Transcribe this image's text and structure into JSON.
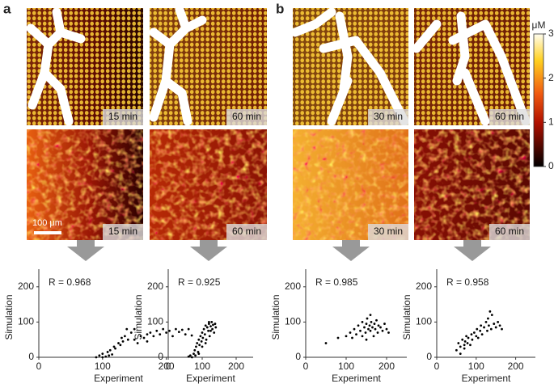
{
  "panels": [
    "a",
    "b"
  ],
  "images": [
    {
      "label": "15 min"
    },
    {
      "label": "60 min"
    },
    {
      "label": "15 min"
    },
    {
      "label": "60 min"
    },
    {
      "label": "30 min"
    },
    {
      "label": "60 min"
    },
    {
      "label": "30 min"
    },
    {
      "label": "60 min"
    }
  ],
  "scale_bar": "100 μm",
  "colorbar": {
    "label": "μM",
    "lim": [
      0,
      3
    ],
    "ticks": [
      0,
      1,
      2,
      3
    ]
  },
  "chart_data": [
    {
      "type": "scatter",
      "title": "R = 0.968",
      "xlabel": "Experiment",
      "ylabel": "Simulation",
      "color": "#000000",
      "xlim": [
        0,
        250
      ],
      "ylim": [
        0,
        250
      ],
      "xticks": [
        0,
        100,
        200
      ],
      "yticks": [
        0,
        100,
        200
      ],
      "x": [
        95,
        100,
        105,
        108,
        112,
        115,
        118,
        120,
        125,
        128,
        130,
        132,
        135,
        138,
        140,
        145,
        150,
        155,
        160,
        165,
        170,
        175,
        180,
        185,
        190,
        195,
        200,
        205,
        210,
        215,
        220,
        225,
        230,
        235,
        240,
        100,
        90,
        110,
        150,
        170
      ],
      "values": [
        5,
        10,
        2,
        15,
        20,
        8,
        30,
        25,
        40,
        35,
        55,
        45,
        60,
        80,
        50,
        70,
        80,
        40,
        60,
        55,
        65,
        70,
        60,
        75,
        65,
        80,
        70,
        75,
        60,
        80,
        72,
        78,
        65,
        80,
        62,
        0,
        0,
        5,
        50,
        45
      ]
    },
    {
      "type": "scatter",
      "title": "R = 0.925",
      "xlabel": "Experiment",
      "ylabel": "Simulation",
      "color": "#000000",
      "xlim": [
        0,
        250
      ],
      "ylim": [
        0,
        250
      ],
      "xticks": [
        0,
        100,
        200
      ],
      "yticks": [
        0,
        100,
        200
      ],
      "x": [
        60,
        65,
        70,
        75,
        78,
        80,
        82,
        85,
        88,
        90,
        92,
        95,
        98,
        100,
        102,
        105,
        108,
        110,
        112,
        115,
        118,
        120,
        122,
        125,
        128,
        130,
        132,
        135,
        138,
        140,
        100,
        110,
        90,
        120,
        125
      ],
      "values": [
        2,
        5,
        0,
        10,
        20,
        5,
        30,
        40,
        15,
        50,
        35,
        60,
        45,
        70,
        55,
        80,
        65,
        90,
        50,
        85,
        75,
        95,
        60,
        88,
        100,
        80,
        92,
        70,
        95,
        85,
        30,
        40,
        10,
        100,
        75
      ]
    },
    {
      "type": "scatter",
      "title": "R = 0.985",
      "xlabel": "Experiment",
      "ylabel": "Simulation",
      "color": "#000000",
      "xlim": [
        0,
        250
      ],
      "ylim": [
        0,
        250
      ],
      "xticks": [
        0,
        100,
        200
      ],
      "yticks": [
        0,
        100,
        200
      ],
      "x": [
        50,
        80,
        100,
        110,
        115,
        120,
        125,
        130,
        135,
        140,
        145,
        148,
        150,
        152,
        155,
        158,
        160,
        162,
        165,
        168,
        170,
        172,
        175,
        178,
        180,
        185,
        190,
        195,
        200,
        205,
        160,
        140,
        150
      ],
      "values": [
        40,
        55,
        60,
        70,
        55,
        80,
        65,
        90,
        75,
        100,
        85,
        70,
        95,
        110,
        80,
        90,
        75,
        100,
        85,
        60,
        95,
        80,
        105,
        70,
        90,
        85,
        75,
        95,
        80,
        70,
        120,
        60,
        50
      ]
    },
    {
      "type": "scatter",
      "title": "R = 0.958",
      "xlabel": "Experiment",
      "ylabel": "Simulation",
      "color": "#000000",
      "xlim": [
        0,
        250
      ],
      "ylim": [
        0,
        250
      ],
      "xticks": [
        0,
        100,
        200
      ],
      "yticks": [
        0,
        100,
        200
      ],
      "x": [
        50,
        55,
        60,
        65,
        70,
        72,
        75,
        78,
        80,
        85,
        88,
        90,
        95,
        100,
        102,
        105,
        110,
        112,
        115,
        120,
        125,
        128,
        130,
        132,
        135,
        138,
        140,
        145,
        150,
        155,
        160,
        165,
        60,
        70
      ],
      "values": [
        20,
        40,
        30,
        50,
        25,
        45,
        60,
        40,
        55,
        35,
        65,
        50,
        70,
        60,
        80,
        55,
        75,
        90,
        65,
        85,
        100,
        75,
        110,
        90,
        130,
        80,
        120,
        95,
        85,
        100,
        90,
        80,
        10,
        35
      ]
    }
  ]
}
